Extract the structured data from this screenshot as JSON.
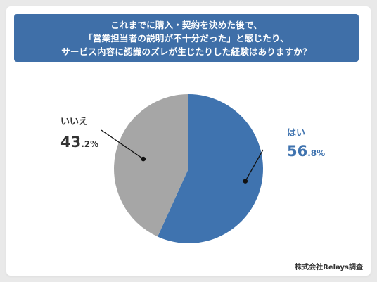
{
  "title_lines": [
    "これまでに購入・契約を決めた後で、",
    "「営業担当者の説明が不十分だった」と感じたり、",
    "サービス内容に認識のズレが生じたりした経験はありますか？"
  ],
  "credit": "株式会社Relays調査",
  "chart_data": {
    "type": "pie",
    "title": "これまでに購入・契約を決めた後で、「営業担当者の説明が不十分だった」と感じたり、サービス内容に認識のズレが生じたりした経験はありますか？",
    "slices": [
      {
        "label": "はい",
        "value": 56.8,
        "value_int": "56",
        "value_dec": ".8%",
        "color": "#3f73af",
        "label_color": "#3f73af"
      },
      {
        "label": "いいえ",
        "value": 43.2,
        "value_int": "43",
        "value_dec": ".2%",
        "color": "#a6a6a6",
        "label_color": "#333333"
      }
    ],
    "start_angle_deg": 0,
    "direction": "clockwise"
  }
}
